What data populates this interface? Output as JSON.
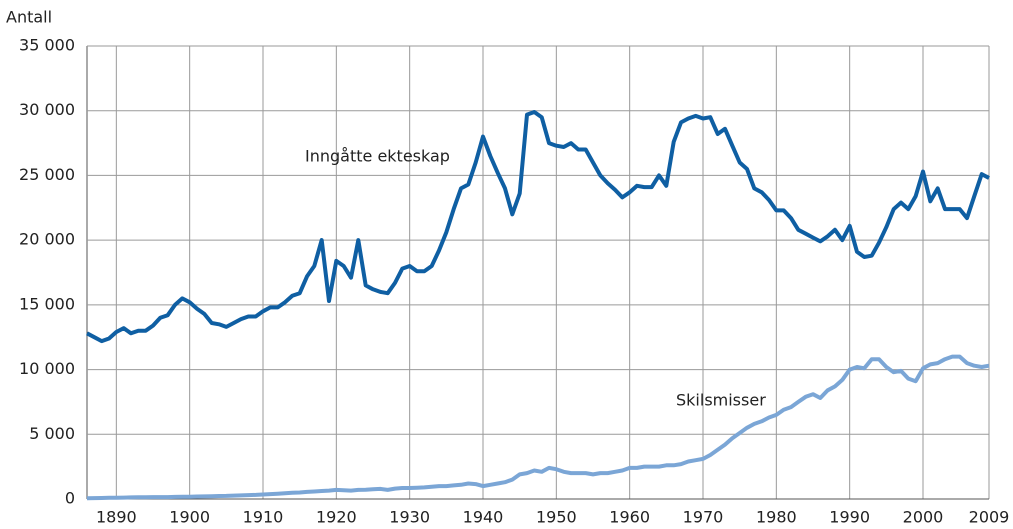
{
  "chart_data": {
    "type": "line",
    "y_axis_label": "Antall",
    "annotations": [
      "Inngåtte ekteskap",
      "Skilsmisser"
    ],
    "x": [
      1886,
      1887,
      1888,
      1889,
      1890,
      1891,
      1892,
      1893,
      1894,
      1895,
      1896,
      1897,
      1898,
      1899,
      1900,
      1901,
      1902,
      1903,
      1904,
      1905,
      1906,
      1907,
      1908,
      1909,
      1910,
      1911,
      1912,
      1913,
      1914,
      1915,
      1916,
      1917,
      1918,
      1919,
      1920,
      1921,
      1922,
      1923,
      1924,
      1925,
      1926,
      1927,
      1928,
      1929,
      1930,
      1931,
      1932,
      1933,
      1934,
      1935,
      1936,
      1937,
      1938,
      1939,
      1940,
      1941,
      1942,
      1943,
      1944,
      1945,
      1946,
      1947,
      1948,
      1949,
      1950,
      1951,
      1952,
      1953,
      1954,
      1955,
      1956,
      1957,
      1958,
      1959,
      1960,
      1961,
      1962,
      1963,
      1964,
      1965,
      1966,
      1967,
      1968,
      1969,
      1970,
      1971,
      1972,
      1973,
      1974,
      1975,
      1976,
      1977,
      1978,
      1979,
      1980,
      1981,
      1982,
      1983,
      1984,
      1985,
      1986,
      1987,
      1988,
      1989,
      1990,
      1991,
      1992,
      1993,
      1994,
      1995,
      1996,
      1997,
      1998,
      1999,
      2000,
      2001,
      2002,
      2003,
      2004,
      2005,
      2006,
      2007,
      2008,
      2009
    ],
    "series": [
      {
        "name": "Inngåtte ekteskap",
        "color": "#0f5fa3",
        "values": [
          12800,
          12500,
          12200,
          12400,
          12900,
          13200,
          12800,
          13000,
          13000,
          13400,
          14000,
          14200,
          15000,
          15500,
          15200,
          14700,
          14300,
          13600,
          13500,
          13300,
          13600,
          13900,
          14100,
          14100,
          14500,
          14800,
          14800,
          15200,
          15700,
          15900,
          17200,
          18000,
          20000,
          15300,
          18400,
          18000,
          17100,
          20000,
          16500,
          16200,
          16000,
          15900,
          16700,
          17800,
          18000,
          17600,
          17600,
          18000,
          19200,
          20600,
          22400,
          24000,
          24300,
          26000,
          28000,
          26500,
          25200,
          24000,
          22000,
          23600,
          29700,
          29900,
          29500,
          27500,
          27300,
          27200,
          27500,
          27000,
          27000,
          26000,
          25000,
          24400,
          23900,
          23300,
          23700,
          24200,
          24100,
          24100,
          25000,
          24200,
          27600,
          29100,
          29400,
          29600,
          29400,
          29500,
          28200,
          28600,
          27300,
          26000,
          25500,
          24000,
          23700,
          23100,
          22300,
          22300,
          21700,
          20800,
          20500,
          20200,
          19900,
          20300,
          20800,
          20000,
          21100,
          19100,
          18700,
          18800,
          19800,
          21000,
          22400,
          22900,
          22400,
          23400,
          25300,
          23000,
          24000,
          22400,
          22400,
          22400,
          21700,
          23400,
          25100,
          24800
        ]
      },
      {
        "name": "Skilsmisser",
        "color": "#7ba6d6",
        "values": [
          60,
          70,
          80,
          90,
          100,
          110,
          120,
          130,
          140,
          150,
          150,
          150,
          160,
          170,
          180,
          190,
          200,
          220,
          230,
          240,
          260,
          280,
          300,
          320,
          350,
          380,
          410,
          450,
          480,
          500,
          550,
          580,
          620,
          650,
          700,
          680,
          650,
          700,
          720,
          750,
          780,
          700,
          800,
          850,
          850,
          870,
          900,
          950,
          1000,
          1000,
          1050,
          1100,
          1200,
          1150,
          1000,
          1100,
          1200,
          1300,
          1500,
          1900,
          2000,
          2200,
          2100,
          2400,
          2300,
          2100,
          2000,
          2000,
          2000,
          1900,
          2000,
          2000,
          2100,
          2200,
          2400,
          2400,
          2500,
          2500,
          2500,
          2600,
          2600,
          2700,
          2900,
          3000,
          3100,
          3400,
          3800,
          4200,
          4700,
          5100,
          5500,
          5800,
          6000,
          6300,
          6500,
          6900,
          7100,
          7500,
          7900,
          8100,
          7800,
          8400,
          8700,
          9200,
          10000,
          10200,
          10100,
          10800,
          10800,
          10200,
          9800,
          9900,
          9300,
          9100,
          10100,
          10400,
          10500,
          10800,
          11000,
          11000,
          10500,
          10300,
          10200,
          10300
        ]
      }
    ],
    "xlim": [
      1886,
      2009
    ],
    "xticks": [
      1890,
      1900,
      1910,
      1920,
      1930,
      1940,
      1950,
      1960,
      1970,
      1980,
      1990,
      2000,
      2009
    ],
    "ylim": [
      0,
      35000
    ],
    "yticks": [
      0,
      {
        "value": 5000,
        "label": "5 000"
      },
      {
        "value": 10000,
        "label": "10 000"
      },
      {
        "value": 15000,
        "label": "15 000"
      },
      {
        "value": 20000,
        "label": "20 000"
      },
      {
        "value": 25000,
        "label": "25 000"
      },
      {
        "value": 30000,
        "label": "30 000"
      },
      {
        "value": 35000,
        "label": "35 000"
      }
    ],
    "grid": true
  }
}
